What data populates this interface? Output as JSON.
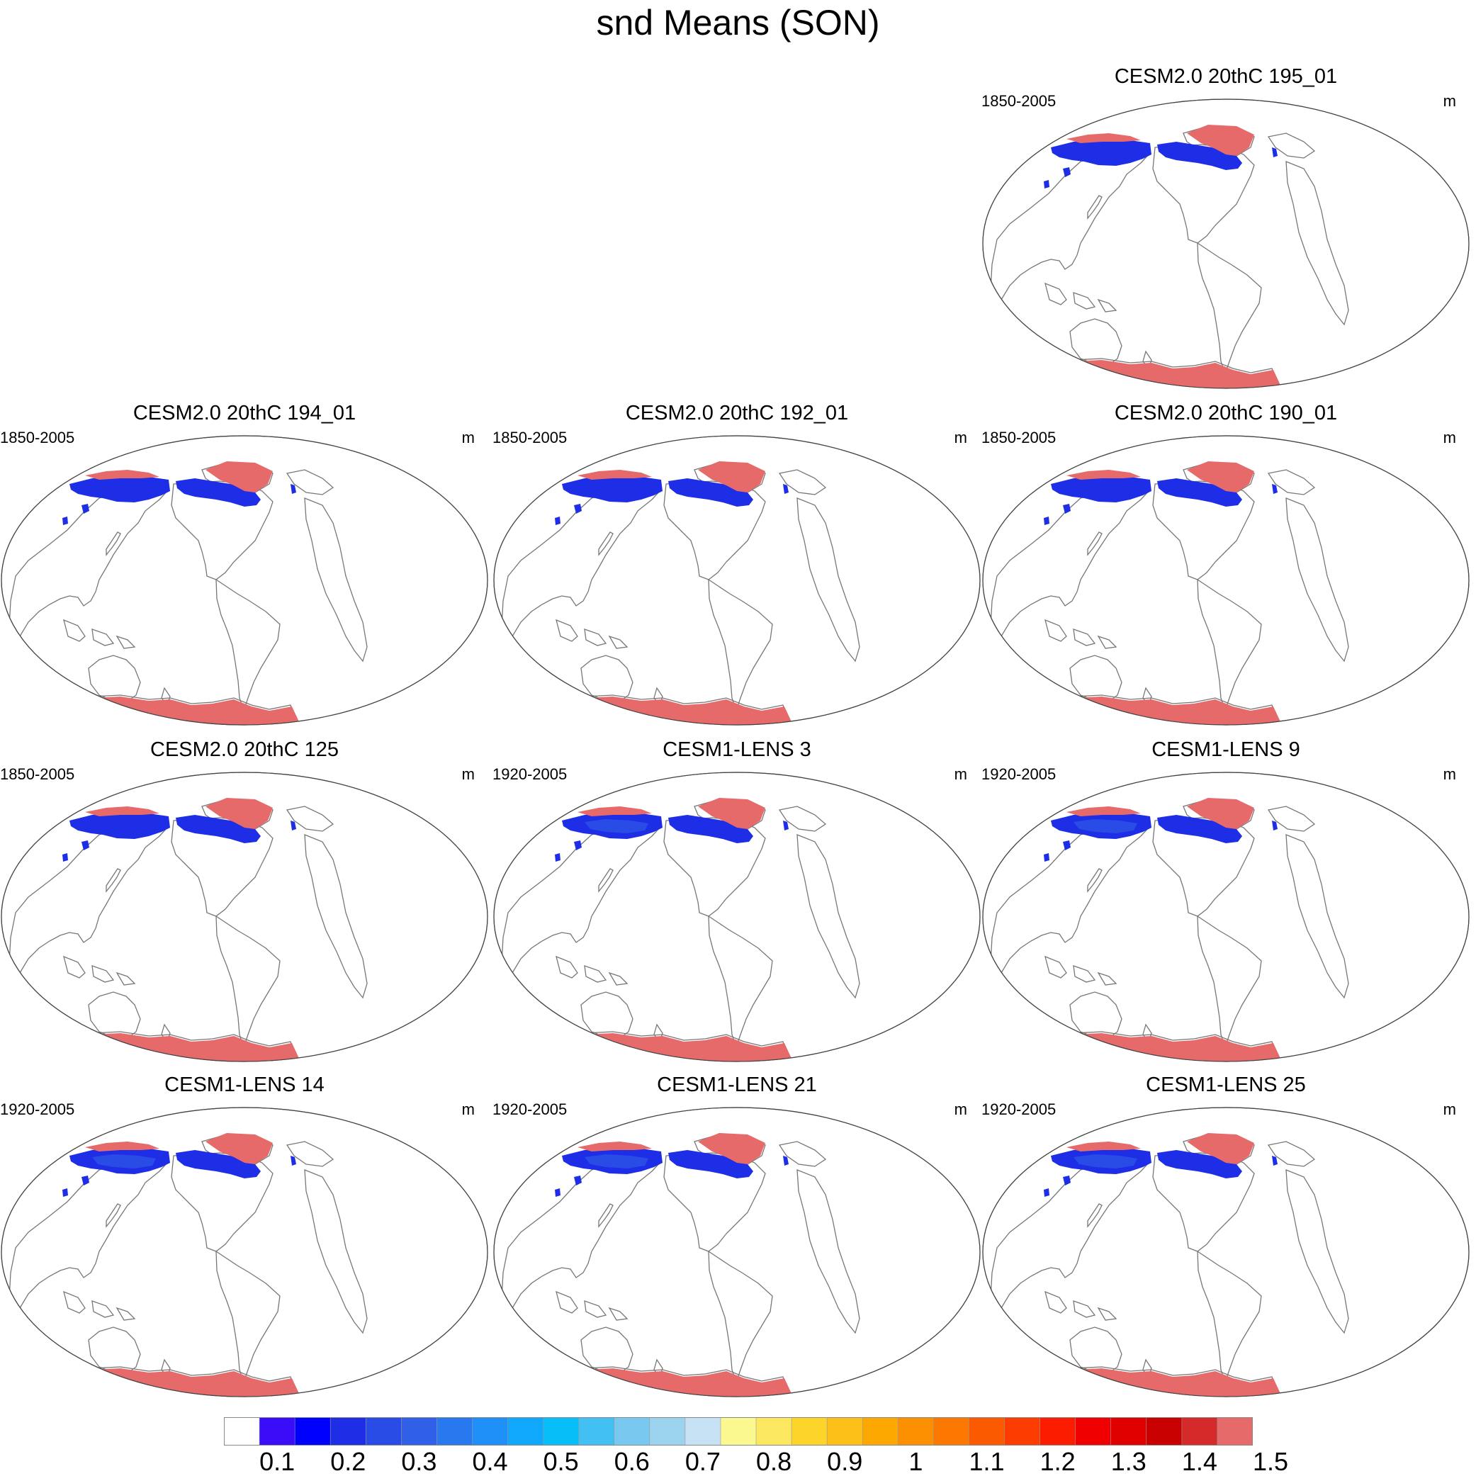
{
  "title": "snd Means (SON)",
  "panels": [
    {
      "title": "CESM2.0 20thC 195_01",
      "period": "1850-2005",
      "units": "m",
      "source": "cesm2"
    },
    {
      "title": "CESM2.0 20thC 194_01",
      "period": "1850-2005",
      "units": "m",
      "source": "cesm2"
    },
    {
      "title": "CESM2.0 20thC 192_01",
      "period": "1850-2005",
      "units": "m",
      "source": "cesm2"
    },
    {
      "title": "CESM2.0 20thC 190_01",
      "period": "1850-2005",
      "units": "m",
      "source": "cesm2"
    },
    {
      "title": "CESM2.0 20thC 125",
      "period": "1850-2005",
      "units": "m",
      "source": "cesm2"
    },
    {
      "title": "CESM1-LENS 3",
      "period": "1920-2005",
      "units": "m",
      "source": "cesm1"
    },
    {
      "title": "CESM1-LENS 9",
      "period": "1920-2005",
      "units": "m",
      "source": "cesm1"
    },
    {
      "title": "CESM1-LENS 14",
      "period": "1920-2005",
      "units": "m",
      "source": "cesm1"
    },
    {
      "title": "CESM1-LENS 21",
      "period": "1920-2005",
      "units": "m",
      "source": "cesm1"
    },
    {
      "title": "CESM1-LENS 25",
      "period": "1920-2005",
      "units": "m",
      "source": "cesm1"
    }
  ],
  "colorbar": {
    "labels": [
      "0.1",
      "0.2",
      "0.3",
      "0.4",
      "0.5",
      "0.6",
      "0.7",
      "0.8",
      "0.9",
      "1",
      "1.1",
      "1.2",
      "1.3",
      "1.4",
      "1.5"
    ],
    "colors": [
      "#ffffff",
      "#3a0cf8",
      "#0000ff",
      "#1e2ee6",
      "#2a4ce6",
      "#3060e8",
      "#2878f0",
      "#1e90f8",
      "#10a8fc",
      "#08bef8",
      "#42c0f4",
      "#78c8f0",
      "#9cd4f0",
      "#c6e2f4",
      "#fcf890",
      "#fce860",
      "#fcd42a",
      "#fcc018",
      "#fca800",
      "#fc9000",
      "#fc7800",
      "#fc5a00",
      "#fc3c00",
      "#fc1c00",
      "#f00000",
      "#e00000",
      "#c80000",
      "#d42a2a",
      "#e66a6a"
    ]
  },
  "colors": {
    "snow_low": "#1e2ee6",
    "snow_mid": "#2a4ce6",
    "snow_high": "#e66a6a",
    "snow_peak": "#e00000",
    "coast": "#777777"
  }
}
